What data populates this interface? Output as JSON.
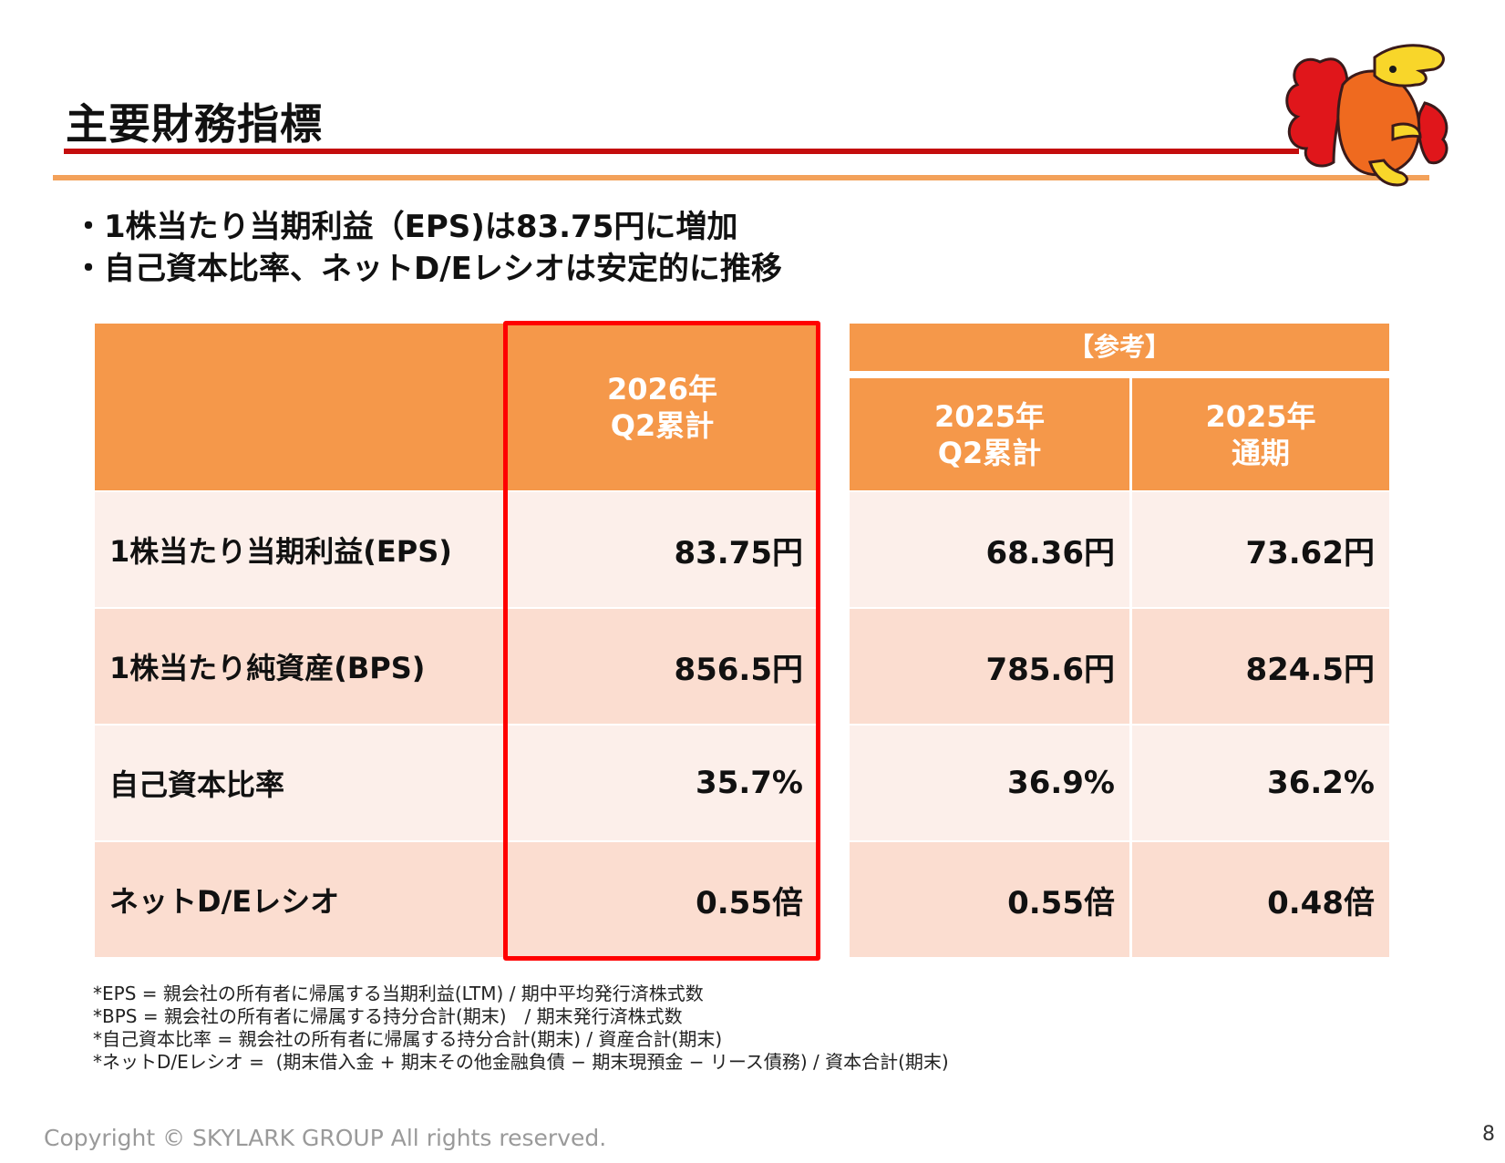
{
  "header": {
    "title": "主要財務指標"
  },
  "bullets": [
    "1株当たり当期利益（EPS)は83.75円に増加",
    "自己資本比率、ネットD/Eレシオは安定的に推移"
  ],
  "table": {
    "reference_label": "【参考】",
    "columns": [
      {
        "line1": "2026年",
        "line2": "Q2累計"
      },
      {
        "line1": "2025年",
        "line2": "Q2累計"
      },
      {
        "line1": "2025年",
        "line2": "通期"
      }
    ],
    "rows": [
      {
        "label": "1株当たり当期利益(EPS)",
        "values": [
          "83.75円",
          "68.36円",
          "73.62円"
        ]
      },
      {
        "label": "1株当たり純資産(BPS)",
        "values": [
          "856.5円",
          "785.6円",
          "824.5円"
        ]
      },
      {
        "label": "自己資本比率",
        "values": [
          "35.7%",
          "36.9%",
          "36.2%"
        ]
      },
      {
        "label": "ネットD/Eレシオ",
        "values": [
          "0.55倍",
          "0.55倍",
          "0.48倍"
        ]
      }
    ]
  },
  "notes": [
    "*EPS = 親会社の所有者に帰属する当期利益(LTM) / 期中平均発行済株式数",
    "*BPS = 親会社の所有者に帰属する持分合計(期末)　/ 期末発行済株式数",
    "*自己資本比率 = 親会社の所有者に帰属する持分合計(期末) / 資産合計(期末)",
    "*ネットD/Eレシオ =  (期末借入金 + 期末その他金融負債 − 期末現預金 − リース債務) / 資本合計(期末)"
  ],
  "footer": {
    "copyright": "Copyright © SKYLARK GROUP All rights reserved.",
    "page_number": "8"
  },
  "colors": {
    "header_orange": "#f5984a",
    "row_light": "#fcefea",
    "row_dark": "#fbddd0",
    "title_rule_red": "#c40d0d",
    "highlight_red": "#ff0000"
  },
  "icons": {
    "mascot": "mascot-illustration"
  }
}
